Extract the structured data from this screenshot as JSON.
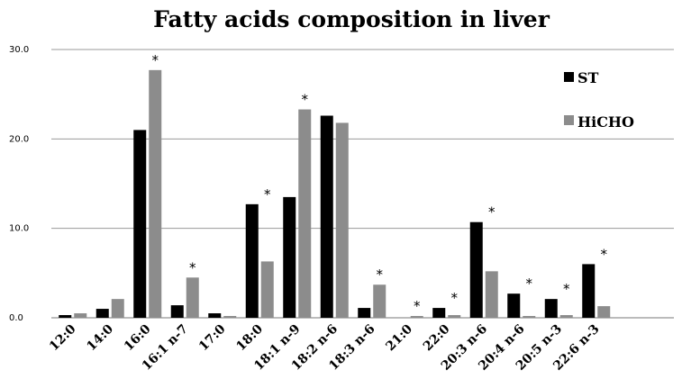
{
  "chart_data": {
    "type": "bar",
    "title": "Fatty acids composition in liver",
    "xlabel": "",
    "ylabel": "",
    "ylim": [
      0,
      30
    ],
    "yticks": [
      "0.0",
      "10.0",
      "20.0",
      "30.0"
    ],
    "grid": true,
    "legend_position": "top-right",
    "categories": [
      "12:0",
      "14:0",
      "16:0",
      "16:1 n-7",
      "17:0",
      "18:0",
      "18:1 n-9",
      "18:2 n-6",
      "18:3 n-6",
      "21:0",
      "22:0",
      "20:3 n-6",
      "20:4 n-6",
      "20:5 n-3",
      "22:6 n-3"
    ],
    "series": [
      {
        "name": "ST",
        "color": "#000000",
        "values": [
          0.3,
          1.0,
          21.0,
          1.4,
          0.5,
          12.7,
          13.5,
          22.6,
          1.1,
          0.0,
          1.1,
          10.7,
          2.7,
          2.1,
          6.0
        ]
      },
      {
        "name": "HiCHO",
        "color": "#8c8c8c",
        "values": [
          0.5,
          2.1,
          27.7,
          4.5,
          0.2,
          6.3,
          23.3,
          21.8,
          3.7,
          0.2,
          0.3,
          5.2,
          0.2,
          0.3,
          1.3
        ]
      }
    ],
    "annotations": [
      {
        "category": "16:0",
        "text": "*"
      },
      {
        "category": "16:1 n-7",
        "text": "*"
      },
      {
        "category": "18:0",
        "text": "*"
      },
      {
        "category": "18:1 n-9",
        "text": "*"
      },
      {
        "category": "18:3 n-6",
        "text": "*"
      },
      {
        "category": "21:0",
        "text": "*"
      },
      {
        "category": "22:0",
        "text": "*"
      },
      {
        "category": "20:3 n-6",
        "text": "*"
      },
      {
        "category": "20:4 n-6",
        "text": "*"
      },
      {
        "category": "20:5 n-3",
        "text": "*"
      },
      {
        "category": "22:6 n-3",
        "text": "*"
      }
    ]
  }
}
